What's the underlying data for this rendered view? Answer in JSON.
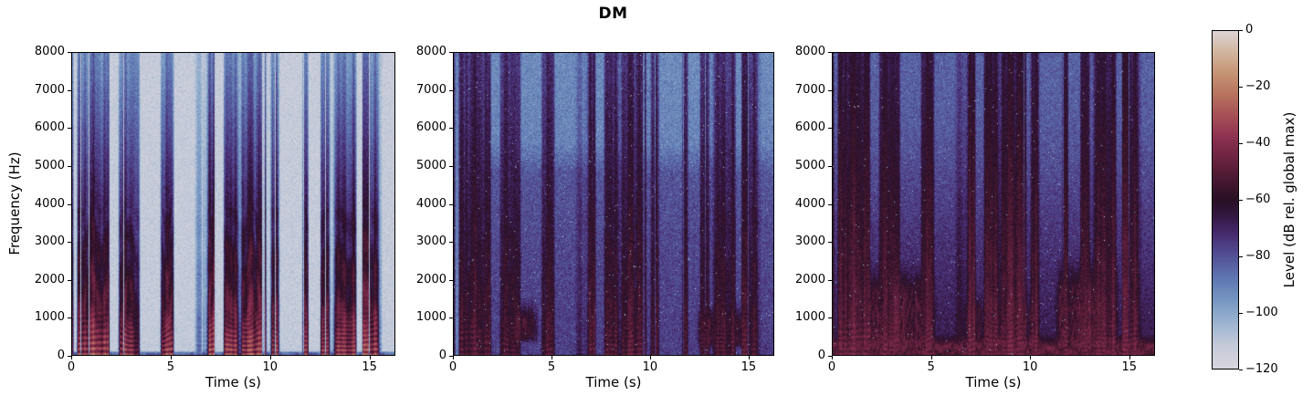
{
  "figure": {
    "title": "DM",
    "background_color": "#ffffff",
    "text_color": "#000000"
  },
  "chart_data": {
    "type": "heatmap",
    "subtype": "audio spectrograms, 1x3 grid with one shared colorbar",
    "title": "DM",
    "x_axis": {
      "label": "Time (s)",
      "range": [
        0,
        16.3
      ],
      "tick_values": [
        0,
        5,
        10,
        15
      ],
      "tick_labels": [
        "0",
        "5",
        "10",
        "15"
      ],
      "grid": false
    },
    "y_axis": {
      "label": "Frequency (Hz)",
      "range": [
        0,
        8000
      ],
      "tick_values": [
        0,
        1000,
        2000,
        3000,
        4000,
        5000,
        6000,
        7000,
        8000
      ],
      "tick_labels": [
        "0",
        "1000",
        "2000",
        "3000",
        "4000",
        "5000",
        "6000",
        "7000",
        "8000"
      ],
      "grid": false
    },
    "colorbar": {
      "label": "Level (dB rel. global max)",
      "range": [
        -120,
        0
      ],
      "tick_values": [
        0,
        -20,
        -40,
        -60,
        -80,
        -100,
        -120
      ],
      "tick_labels": [
        "0",
        "−20",
        "−40",
        "−60",
        "−80",
        "−100",
        "−120"
      ],
      "colormap": "twilight",
      "gradient_anchors": [
        [
          -120,
          "#d9d5dd"
        ],
        [
          -112,
          "#c5cbd9"
        ],
        [
          -104,
          "#9db4d0"
        ],
        [
          -96,
          "#7797c2"
        ],
        [
          -88,
          "#5f77b2"
        ],
        [
          -80,
          "#535096"
        ],
        [
          -72,
          "#472a6e"
        ],
        [
          -66,
          "#351843"
        ],
        [
          -60,
          "#271023"
        ],
        [
          -54,
          "#43172f"
        ],
        [
          -46,
          "#67223f"
        ],
        [
          -38,
          "#8c3050"
        ],
        [
          -30,
          "#a65056"
        ],
        [
          -22,
          "#b8755f"
        ],
        [
          -14,
          "#c79778"
        ],
        [
          -6,
          "#d4bca8"
        ],
        [
          0,
          "#ddd3d6"
        ]
      ]
    },
    "speech_model": {
      "seed": 11,
      "comment": "same utterance (~16.3 s of speech) shown in all three panels",
      "gaps": [
        [
          0,
          0.32
        ],
        [
          3.35,
          4.55
        ],
        [
          7.35,
          7.72
        ],
        [
          11.05,
          11.72
        ],
        [
          15.85,
          16.3
        ]
      ]
    },
    "panels": [
      {
        "index": 0,
        "description": "Clean speech: light lavender background with dark blue-violet vertical speech striations; red-maroon harmonic traces below ~1 kHz; silent gaps near 0 s, 3.4-4.5 s, 7.4-7.7 s, 11.1-11.7 s and after 15.8 s.",
        "render": {
          "seed": 101,
          "floor": [
            [
              0,
              -112
            ],
            [
              8000,
              -113
            ]
          ],
          "sp_base": -40,
          "sp_slope": -50,
          "sp_pow": 0.85,
          "col_var": 18,
          "harm": 11,
          "formant": 4,
          "sigma": 5,
          "slit": 0.1,
          "salt": 0,
          "lead_in": null,
          "floor_patches": [],
          "bottom_band": {
            "f": 70,
            "db": -85
          }
        }
      },
      {
        "index": 1,
        "description": "Moderate noise: blue-cyan noise floor, lighter above ~5.5 kHz; dark purple speech streaks; faint red-orange low-frequency patches near 3-4.5 s and 12.5-15 s; noise-only lead-in before ~0.9 s.",
        "render": {
          "seed": 202,
          "floor": [
            [
              0,
              -76
            ],
            [
              2500,
              -78
            ],
            [
              4800,
              -81
            ],
            [
              5600,
              -91
            ],
            [
              8000,
              -93
            ]
          ],
          "sp_base": -54,
          "sp_slope": -18,
          "sp_pow": 1,
          "col_var": 13,
          "harm": 5,
          "formant": 1.5,
          "sigma": 6.5,
          "slit": 0.07,
          "salt": 0.004,
          "lead_in": {
            "t": 0.85,
            "db": -90
          },
          "floor_patches": [
            {
              "t": [
                2.9,
                4.4
              ],
              "f": [
                250,
                1600
              ],
              "db": -56
            },
            {
              "t": [
                12.3,
                15.0
              ],
              "f": [
                100,
                1500
              ],
              "db": -58
            }
          ],
          "bottom_band": null
        }
      },
      {
        "index": 2,
        "description": "Heavy noise: dark violet floor with blue speckle at high frequencies; widespread red-orange energy below ~2.5 kHz (strongest 1-5 s and 11-14.5 s) and a persistent red band near 0-400 Hz.",
        "render": {
          "seed": 303,
          "floor": [
            [
              0,
              -66
            ],
            [
              1500,
              -70
            ],
            [
              3500,
              -75
            ],
            [
              6000,
              -82
            ],
            [
              8000,
              -84
            ]
          ],
          "sp_base": -49,
          "sp_slope": -15,
          "sp_pow": 1,
          "col_var": 11,
          "harm": 5,
          "formant": 1,
          "sigma": 6,
          "slit": 0.06,
          "salt": 0.003,
          "lead_in": null,
          "floor_patches": [
            {
              "t": [
                1.0,
                5.3
              ],
              "f": [
                100,
                2600
              ],
              "db": -53
            },
            {
              "t": [
                6.5,
                10.5
              ],
              "f": [
                100,
                1800
              ],
              "db": -58
            },
            {
              "t": [
                11.2,
                14.6
              ],
              "f": [
                100,
                2800
              ],
              "db": -52
            }
          ],
          "bottom_band": {
            "f": 380,
            "db": -49
          }
        }
      }
    ]
  }
}
